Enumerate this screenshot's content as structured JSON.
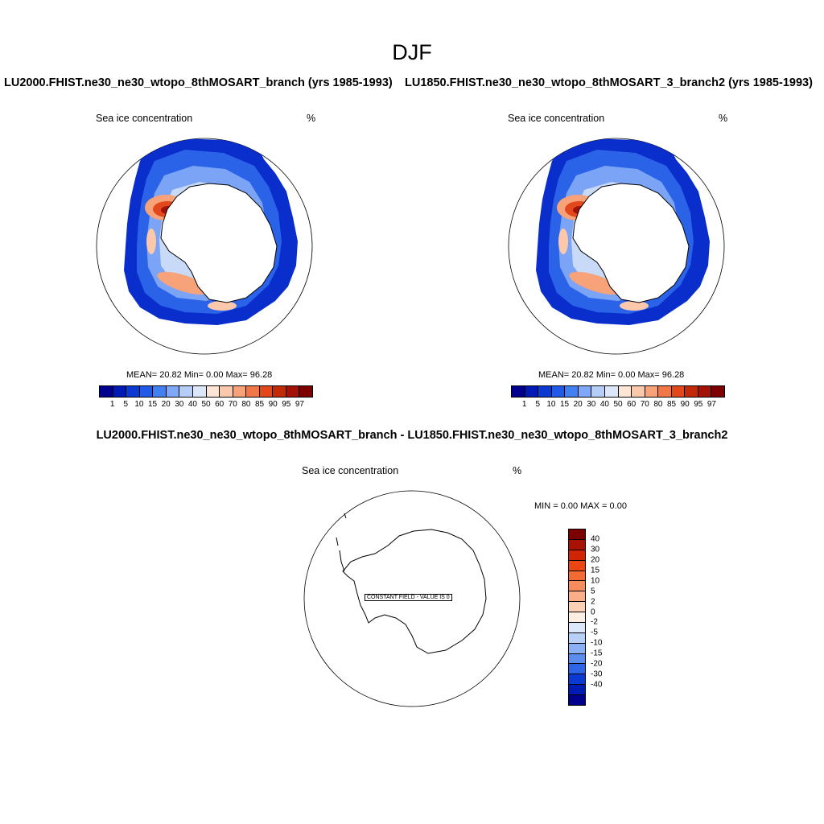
{
  "main_title": "DJF",
  "panels": [
    {
      "title": "LU2000.FHIST.ne30_ne30_wtopo_8thMOSART_branch (yrs 1985-1993)",
      "variable": "Sea ice concentration",
      "units": "%",
      "stats": "MEAN=  20.82  Min=   0.00  Max=  96.28"
    },
    {
      "title": "LU1850.FHIST.ne30_ne30_wtopo_8thMOSART_3_branch2 (yrs 1985-1993)",
      "variable": "Sea ice concentration",
      "units": "%",
      "stats": "MEAN=  20.82  Min=   0.00  Max=  96.28"
    }
  ],
  "diff_panel": {
    "title": "LU2000.FHIST.ne30_ne30_wtopo_8thMOSART_branch - LU1850.FHIST.ne30_ne30_wtopo_8thMOSART_3_branch2",
    "variable": "Sea ice concentration",
    "units": "%",
    "stats": "MIN =   0.00 MAX =   0.00",
    "constant_label": "CONSTANT FIELD - VALUE IS 0"
  },
  "colorbar_levels": [
    "1",
    "5",
    "10",
    "15",
    "20",
    "30",
    "40",
    "50",
    "60",
    "70",
    "80",
    "85",
    "90",
    "95",
    "97"
  ],
  "colorbar_colors": [
    "#00008c",
    "#001ab4",
    "#0a3ad2",
    "#1f5ae8",
    "#4280f0",
    "#80a8f8",
    "#b4cef8",
    "#dce8fa",
    "#fde6d6",
    "#fcc8ac",
    "#f8a27a",
    "#f07848",
    "#e2481c",
    "#c22a08",
    "#a21206",
    "#7d0000"
  ],
  "diff_levels": [
    "40",
    "30",
    "20",
    "15",
    "10",
    "5",
    "2",
    "0",
    "-2",
    "-5",
    "-10",
    "-15",
    "-20",
    "-30",
    "-40"
  ],
  "diff_colors": [
    "#7d0000",
    "#a81204",
    "#d02404",
    "#ec4614",
    "#f46a34",
    "#f88c5c",
    "#fcae88",
    "#fcd0b4",
    "#fdeee4",
    "#dce8fa",
    "#b8d0f8",
    "#8cb0f4",
    "#5c8cee",
    "#2e64e6",
    "#0a3ad2",
    "#001ab4",
    "#00008c"
  ]
}
